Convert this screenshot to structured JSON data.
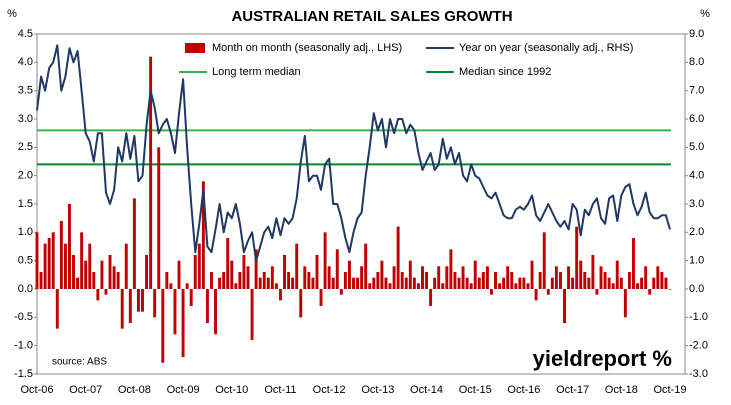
{
  "chart_data": {
    "type": "bar_line",
    "title": "AUSTRALIAN RETAIL SALES GROWTH",
    "y_label": "%",
    "y2_label": "%",
    "source": "source: ABS",
    "logo": "yieldreport %",
    "categories": [
      "Oct-06",
      null,
      null,
      null,
      null,
      null,
      null,
      null,
      null,
      null,
      null,
      null,
      "Oct-07",
      null,
      null,
      null,
      null,
      null,
      null,
      null,
      null,
      null,
      null,
      null,
      "Oct-08",
      null,
      null,
      null,
      null,
      null,
      null,
      null,
      null,
      null,
      null,
      null,
      "Oct-09",
      null,
      null,
      null,
      null,
      null,
      null,
      null,
      null,
      null,
      null,
      null,
      "Oct-10",
      null,
      null,
      null,
      null,
      null,
      null,
      null,
      null,
      null,
      null,
      null,
      "Oct-11",
      null,
      null,
      null,
      null,
      null,
      null,
      null,
      null,
      null,
      null,
      null,
      "Oct-12",
      null,
      null,
      null,
      null,
      null,
      null,
      null,
      null,
      null,
      null,
      null,
      "Oct-13",
      null,
      null,
      null,
      null,
      null,
      null,
      null,
      null,
      null,
      null,
      null,
      "Oct-14",
      null,
      null,
      null,
      null,
      null,
      null,
      null,
      null,
      null,
      null,
      null,
      "Oct-15",
      null,
      null,
      null,
      null,
      null,
      null,
      null,
      null,
      null,
      null,
      null,
      "Oct-16",
      null,
      null,
      null,
      null,
      null,
      null,
      null,
      null,
      null,
      null,
      null,
      "Oct-17",
      null,
      null,
      null,
      null,
      null,
      null,
      null,
      null,
      null,
      null,
      null,
      "Oct-18",
      null,
      null,
      null,
      null,
      null,
      null,
      null,
      null,
      null,
      null,
      null,
      "Oct-19"
    ],
    "series": [
      {
        "name": "Month on month (seasonally adj., LHS)",
        "type": "bar",
        "color": "#c00000",
        "axis": "y",
        "values": [
          1.0,
          0.3,
          0.8,
          0.9,
          1.0,
          -0.7,
          1.2,
          0.8,
          1.5,
          0.6,
          0.2,
          1.0,
          0.5,
          0.8,
          0.3,
          -0.2,
          0.5,
          -0.1,
          0.6,
          0.4,
          0.3,
          -0.7,
          0.8,
          -0.6,
          1.6,
          -0.4,
          -0.4,
          0.6,
          4.1,
          -0.5,
          2.5,
          -1.3,
          0.3,
          0.1,
          -0.8,
          0.5,
          -1.2,
          0.1,
          -0.3,
          0.6,
          0.8,
          1.9,
          -0.6,
          0.3,
          -0.8,
          0.2,
          0.3,
          0.9,
          0.5,
          0.1,
          0.3,
          0.6,
          0.4,
          -0.9,
          0.7,
          0.2,
          0.3,
          0.2,
          0.4,
          0.1,
          -0.2,
          0.6,
          0.3,
          0.2,
          0.8,
          -0.5,
          0.4,
          0.3,
          0.2,
          0.6,
          -0.3,
          1.0,
          0.4,
          0.2,
          0.7,
          -0.1,
          0.3,
          0.5,
          0.2,
          0.2,
          0.4,
          0.8,
          0.1,
          0.2,
          0.3,
          0.5,
          0.2,
          0.1,
          0.4,
          1.1,
          0.3,
          0.2,
          0.5,
          0.2,
          0.1,
          0.4,
          0.3,
          -0.3,
          0.2,
          0.4,
          0.1,
          0.4,
          0.7,
          0.3,
          0.2,
          0.4,
          0.2,
          0.1,
          0.5,
          0.2,
          0.3,
          0.4,
          -0.1,
          0.3,
          0.1,
          0.2,
          0.4,
          0.3,
          0.1,
          0.2,
          0.2,
          0.1,
          0.5,
          -0.2,
          0.3,
          1.0,
          -0.1,
          0.2,
          0.4,
          0.3,
          -0.6,
          0.4,
          0.2,
          1.1,
          0.5,
          0.3,
          0.2,
          0.6,
          -0.1,
          0.4,
          0.3,
          0.2,
          0.1,
          0.5,
          0.2,
          -0.5,
          0.3,
          0.9,
          0.1,
          0.2,
          0.4,
          -0.1,
          0.2,
          0.4,
          0.3,
          0.2,
          0.0
        ]
      },
      {
        "name": "Year on year (seasonally adj., RHS)",
        "type": "line",
        "color": "#1f3864",
        "axis": "y2",
        "values": [
          6.3,
          7.5,
          7.0,
          7.8,
          8.0,
          8.6,
          7.0,
          7.5,
          8.5,
          8.0,
          8.4,
          7.0,
          5.5,
          5.2,
          4.5,
          5.5,
          5.5,
          3.4,
          3.0,
          3.5,
          5.0,
          4.5,
          5.5,
          4.6,
          5.4,
          3.8,
          4.0,
          5.8,
          7.0,
          6.4,
          5.5,
          5.8,
          6.0,
          5.5,
          4.8,
          6.2,
          7.4,
          5.0,
          3.0,
          1.3,
          2.3,
          3.5,
          1.5,
          1.3,
          2.1,
          3.0,
          2.0,
          2.7,
          2.5,
          3.0,
          2.3,
          1.3,
          1.7,
          2.0,
          1.0,
          1.5,
          2.0,
          2.2,
          1.8,
          2.5,
          1.9,
          2.5,
          2.3,
          2.5,
          3.2,
          4.5,
          5.4,
          3.8,
          4.0,
          4.0,
          3.5,
          4.4,
          4.6,
          3.0,
          3.0,
          2.5,
          1.8,
          1.3,
          2.0,
          2.5,
          2.7,
          4.0,
          5.0,
          6.2,
          5.6,
          6.0,
          5.0,
          6.0,
          5.5,
          6.0,
          6.0,
          5.5,
          5.8,
          5.6,
          4.8,
          4.2,
          4.5,
          4.8,
          4.2,
          4.4,
          5.3,
          4.6,
          5.0,
          4.4,
          4.8,
          4.0,
          3.8,
          4.4,
          4.0,
          3.9,
          3.6,
          3.3,
          3.2,
          3.4,
          3.0,
          2.6,
          2.5,
          2.5,
          2.8,
          2.9,
          2.8,
          3.0,
          3.3,
          2.6,
          2.4,
          2.7,
          3.0,
          2.7,
          2.4,
          2.2,
          2.4,
          2.1,
          3.0,
          2.8,
          1.9,
          2.8,
          2.6,
          3.0,
          3.2,
          2.5,
          2.3,
          3.2,
          3.3,
          2.4,
          3.3,
          3.6,
          3.7,
          3.0,
          2.6,
          2.9,
          3.4,
          2.7,
          2.5,
          2.5,
          2.6,
          2.6,
          2.1
        ]
      }
    ],
    "reference_lines": [
      {
        "name": "Long term median",
        "value": 5.6,
        "color": "#33b54a",
        "axis": "y2"
      },
      {
        "name": "Median since 1992",
        "value": 4.4,
        "color": "#008a2e",
        "axis": "y2"
      }
    ],
    "ylim": [
      -1.5,
      4.5
    ],
    "yticks": [
      4.5,
      {
        "value": 4.0,
        "label": "4.0"
      },
      3.5,
      {
        "value": 3.0,
        "label": "3.0"
      },
      2.5,
      {
        "value": 2.0,
        "label": "2.0"
      },
      1.5,
      {
        "value": 1.0,
        "label": "1.0"
      },
      0.5,
      {
        "value": 0,
        "label": "0.0"
      },
      -0.5,
      {
        "value": -1.0,
        "label": "-1.0"
      },
      -1.5
    ],
    "y2lim": [
      -3,
      9
    ],
    "y2ticks": [
      {
        "value": 9,
        "label": "9.0"
      },
      {
        "value": 8,
        "label": "8.0"
      },
      {
        "value": 7,
        "label": "7.0"
      },
      {
        "value": 6,
        "label": "6.0"
      },
      {
        "value": 5,
        "label": "5.0"
      },
      {
        "value": 4,
        "label": "4.0"
      },
      {
        "value": 3,
        "label": "3.0"
      },
      {
        "value": 2,
        "label": "2.0"
      },
      {
        "value": 1,
        "label": "1.0"
      },
      {
        "value": 0,
        "label": "0.0"
      },
      {
        "value": -1,
        "label": "-1.0"
      },
      {
        "value": -2,
        "label": "-2.0"
      },
      {
        "value": -3,
        "label": "-3.0"
      }
    ]
  }
}
